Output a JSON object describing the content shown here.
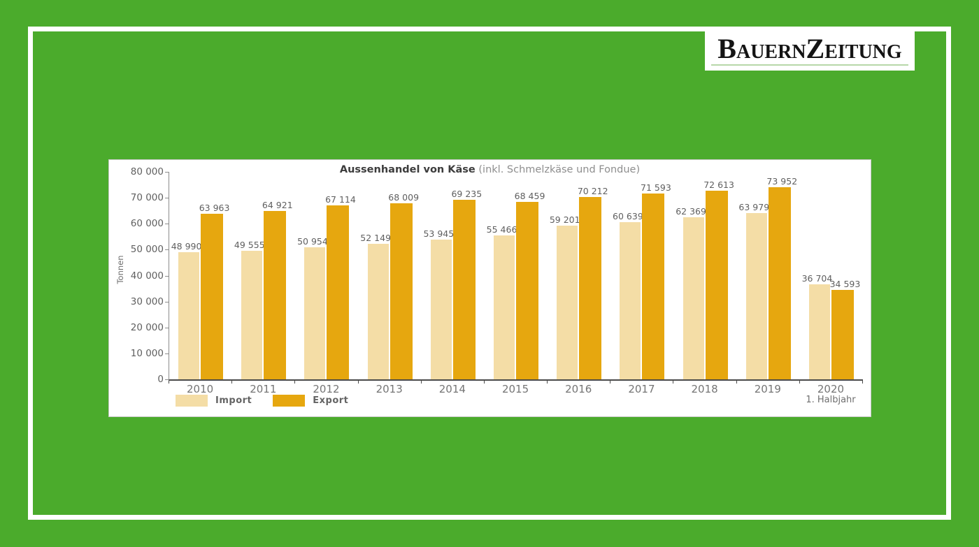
{
  "page": {
    "background_color": "#4bab2c",
    "frame_color": "#ffffff"
  },
  "logo": {
    "text": "BauernZeitung",
    "underline_color": "#b7d7a9"
  },
  "chart": {
    "title_main": "Aussenhandel von Käse",
    "title_suffix": " (inkl. Schmelzkäse und Fondue)",
    "y_axis_label": "Tonnen",
    "y_ticks": [
      "80 000",
      "70 000",
      "60 000",
      "50 000",
      "40 000",
      "30 000",
      "20 000",
      "10 000",
      "0"
    ],
    "legend": [
      {
        "label": "Import",
        "color": "#f4dda6"
      },
      {
        "label": "Export",
        "color": "#e6a70f"
      }
    ]
  },
  "chart_data": {
    "type": "bar",
    "title": "Aussenhandel von Käse (inkl. Schmelzkäse und Fondue)",
    "xlabel": "",
    "ylabel": "Tonnen",
    "ylim": [
      0,
      80000
    ],
    "grid": false,
    "legend_position": "bottom-left",
    "categories": [
      "2010",
      "2011",
      "2012",
      "2013",
      "2014",
      "2015",
      "2016",
      "2017",
      "2018",
      "2019",
      "2020"
    ],
    "last_category_note": "1. Halbjahr",
    "series": [
      {
        "name": "Import",
        "color": "#f4dda6",
        "values": [
          48990,
          49555,
          50954,
          52149,
          53945,
          55466,
          59201,
          60639,
          62369,
          63979,
          36704
        ],
        "labels": [
          "48 990",
          "49 555",
          "50 954",
          "52 149",
          "53 945",
          "55 466",
          "59 201",
          "60 639",
          "62 369",
          "63 979",
          "36 704"
        ]
      },
      {
        "name": "Export",
        "color": "#e6a70f",
        "values": [
          63963,
          64921,
          67114,
          68009,
          69235,
          68459,
          70212,
          71593,
          72613,
          73952,
          34593
        ],
        "labels": [
          "63 963",
          "64 921",
          "67 114",
          "68 009",
          "69 235",
          "68 459",
          "70 212",
          "71 593",
          "72 613",
          "73 952",
          "34 593"
        ]
      }
    ]
  }
}
